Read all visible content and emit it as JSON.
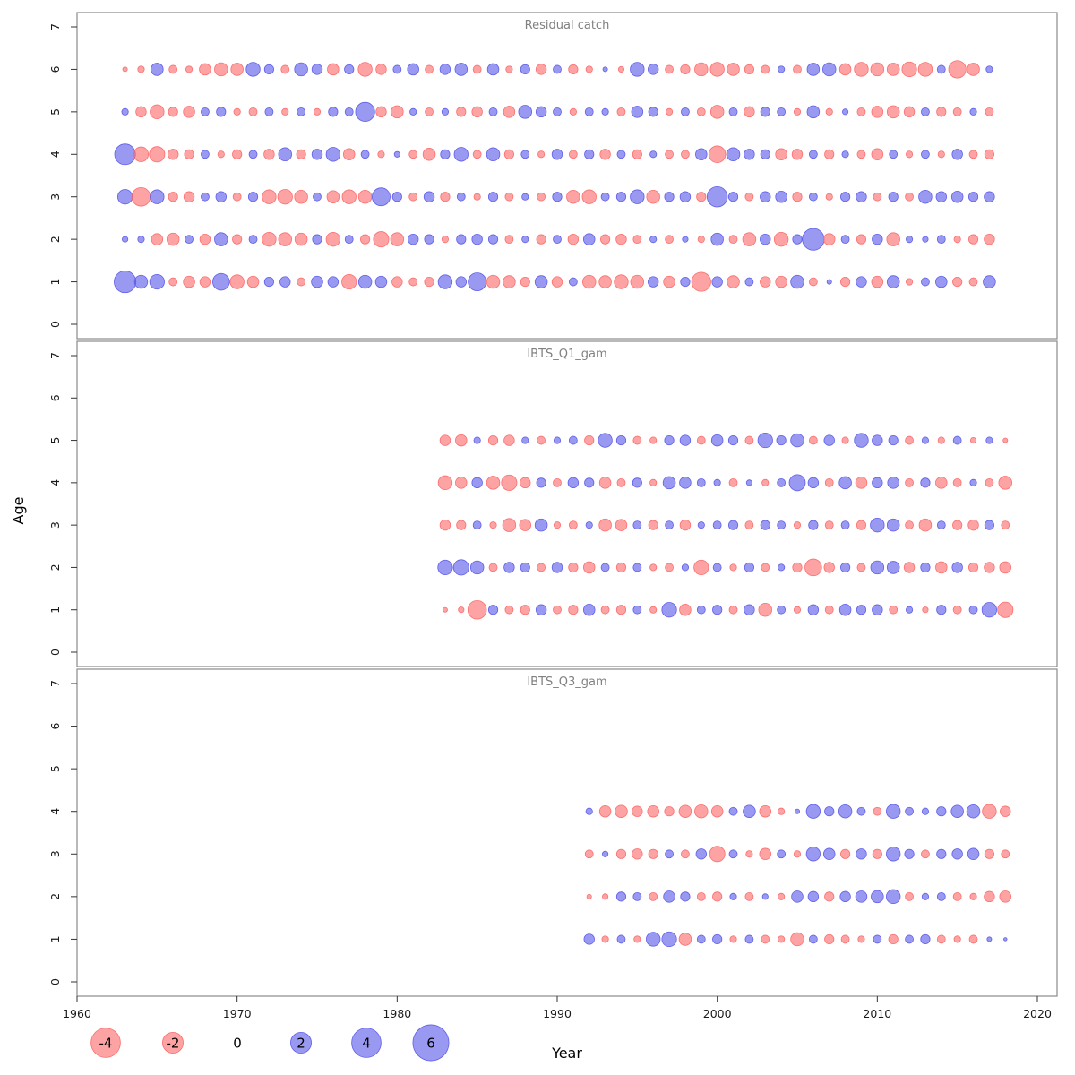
{
  "chart_data": {
    "type": "scatter",
    "subtype": "bubble-residuals",
    "xlabel": "Year",
    "ylabel": "Age",
    "xlim": [
      1958,
      2021
    ],
    "ylim": [
      0,
      7
    ],
    "x_ticks": [
      1960,
      1970,
      1980,
      1990,
      2000,
      2010,
      2020
    ],
    "y_ticks": [
      0,
      1,
      2,
      3,
      4,
      5,
      6,
      7
    ],
    "grid": false,
    "colors": {
      "positive": "#5b5be8",
      "negative": "#fb6a6a"
    },
    "legend": {
      "position": "bottom-left",
      "values": [
        -4,
        -2,
        0,
        2,
        4,
        6
      ]
    },
    "panels": [
      {
        "title": "Residual catch",
        "start_year": 1963,
        "series": [
          {
            "age": 1,
            "values": [
              2.2,
              0.8,
              1.0,
              -0.3,
              -0.6,
              -0.5,
              1.3,
              -0.9,
              -0.6,
              0.4,
              0.5,
              -0.3,
              0.6,
              0.5,
              -1.0,
              0.8,
              0.6,
              -0.5,
              -0.3,
              -0.4,
              0.9,
              0.5,
              1.5,
              -0.8,
              -0.7,
              -0.4,
              0.7,
              -0.5,
              0.3,
              -0.8,
              -0.7,
              -0.9,
              -0.8,
              0.5,
              -0.6,
              0.4,
              -1.7,
              0.5,
              -0.7,
              0.3,
              -0.5,
              -0.6,
              0.8,
              -0.3,
              0.1,
              -0.4,
              0.5,
              -0.6,
              0.7,
              -0.2,
              0.3,
              0.6,
              -0.4,
              -0.3,
              0.7
            ]
          },
          {
            "age": 2,
            "values": [
              0.15,
              0.2,
              -0.6,
              -0.7,
              0.3,
              -0.5,
              0.8,
              -0.4,
              0.3,
              -0.9,
              -0.8,
              -0.7,
              0.4,
              -0.9,
              0.3,
              -0.4,
              -1.1,
              -0.8,
              0.5,
              0.4,
              -0.2,
              0.4,
              0.5,
              0.4,
              -0.3,
              0.2,
              -0.4,
              0.3,
              -0.5,
              0.6,
              -0.4,
              -0.5,
              -0.3,
              0.2,
              -0.3,
              0.15,
              -0.2,
              0.7,
              -0.3,
              -0.8,
              0.5,
              -0.9,
              0.4,
              2.2,
              -0.6,
              0.3,
              -0.4,
              0.5,
              -0.8,
              0.2,
              0.15,
              0.3,
              -0.2,
              -0.4,
              -0.5
            ]
          },
          {
            "age": 3,
            "values": [
              1.0,
              -1.6,
              0.9,
              -0.4,
              -0.5,
              0.3,
              0.5,
              -0.3,
              0.4,
              -0.9,
              -1.0,
              -0.8,
              0.3,
              -0.7,
              -0.9,
              -0.8,
              1.5,
              0.4,
              -0.3,
              0.5,
              -0.4,
              0.3,
              -0.2,
              0.4,
              -0.3,
              0.2,
              -0.3,
              0.4,
              -0.8,
              -0.9,
              0.3,
              0.4,
              0.9,
              -0.8,
              0.4,
              0.5,
              -0.4,
              1.9,
              0.4,
              -0.3,
              0.5,
              0.6,
              -0.4,
              0.3,
              -0.2,
              0.4,
              0.5,
              -0.3,
              0.4,
              -0.3,
              0.8,
              0.5,
              0.6,
              0.4,
              0.5
            ]
          },
          {
            "age": 4,
            "values": [
              2.0,
              -1.0,
              -1.1,
              -0.5,
              -0.4,
              0.3,
              -0.2,
              -0.4,
              0.3,
              -0.5,
              0.8,
              -0.4,
              0.5,
              0.9,
              -0.6,
              0.3,
              -0.2,
              0.15,
              -0.3,
              -0.7,
              0.4,
              0.9,
              -0.3,
              0.8,
              -0.4,
              0.3,
              -0.2,
              0.5,
              -0.3,
              0.4,
              -0.5,
              0.3,
              -0.4,
              0.2,
              -0.3,
              -0.3,
              0.6,
              -1.3,
              0.8,
              0.5,
              0.4,
              -0.6,
              -0.5,
              0.3,
              -0.4,
              0.2,
              -0.3,
              -0.6,
              0.3,
              -0.2,
              0.3,
              -0.2,
              0.5,
              -0.3,
              -0.4
            ]
          },
          {
            "age": 5,
            "values": [
              0.2,
              -0.5,
              -0.9,
              -0.4,
              -0.6,
              0.3,
              0.4,
              -0.2,
              -0.3,
              0.3,
              -0.2,
              0.3,
              -0.2,
              0.4,
              0.3,
              1.7,
              -0.5,
              -0.7,
              0.2,
              -0.3,
              0.2,
              -0.4,
              -0.5,
              0.3,
              -0.6,
              0.8,
              0.5,
              0.3,
              -0.2,
              0.3,
              0.2,
              -0.3,
              0.6,
              0.4,
              -0.2,
              0.3,
              -0.3,
              -0.8,
              0.3,
              -0.5,
              0.4,
              0.3,
              -0.2,
              0.7,
              -0.2,
              0.15,
              -0.3,
              -0.6,
              -0.7,
              -0.5,
              0.3,
              -0.4,
              -0.3,
              0.2,
              -0.3
            ]
          },
          {
            "age": 6,
            "values": [
              -0.1,
              -0.2,
              0.7,
              -0.3,
              -0.2,
              -0.6,
              -0.8,
              -0.7,
              0.9,
              0.4,
              -0.3,
              0.8,
              0.5,
              -0.6,
              0.4,
              -0.9,
              -0.5,
              0.3,
              0.6,
              -0.3,
              0.5,
              0.7,
              -0.3,
              0.6,
              -0.2,
              0.4,
              -0.5,
              0.3,
              -0.4,
              -0.2,
              0.1,
              -0.15,
              0.9,
              0.5,
              -0.3,
              -0.4,
              -0.8,
              -0.9,
              -0.7,
              -0.4,
              -0.3,
              0.2,
              -0.3,
              0.7,
              0.8,
              -0.6,
              -0.9,
              -0.8,
              -0.7,
              -1.0,
              -0.9,
              0.3,
              -1.4,
              -0.7,
              0.2
            ]
          }
        ]
      },
      {
        "title": "IBTS_Q1_gam",
        "start_year": 1983,
        "series": [
          {
            "age": 1,
            "values": [
              -0.1,
              -0.15,
              -1.6,
              0.4,
              -0.3,
              -0.4,
              0.5,
              -0.3,
              -0.4,
              0.6,
              -0.3,
              -0.4,
              0.3,
              -0.2,
              1.0,
              -0.6,
              0.3,
              0.4,
              -0.3,
              0.5,
              -0.8,
              0.3,
              -0.2,
              0.5,
              -0.3,
              0.6,
              0.4,
              0.5,
              -0.3,
              0.2,
              -0.15,
              0.4,
              -0.3,
              0.3,
              1.0,
              -1.1
            ]
          },
          {
            "age": 2,
            "values": [
              1.0,
              1.1,
              0.8,
              -0.3,
              0.5,
              0.4,
              -0.3,
              0.5,
              -0.4,
              -0.6,
              0.3,
              -0.4,
              0.3,
              -0.2,
              -0.3,
              0.2,
              -1.0,
              0.3,
              -0.2,
              0.4,
              -0.3,
              0.2,
              -0.4,
              -1.3,
              -0.5,
              0.4,
              -0.3,
              0.8,
              0.7,
              -0.5,
              0.4,
              -0.6,
              0.5,
              -0.4,
              -0.5,
              -0.6
            ]
          },
          {
            "age": 3,
            "values": [
              -0.5,
              -0.4,
              0.3,
              -0.2,
              -0.8,
              -0.6,
              0.7,
              -0.2,
              -0.3,
              0.2,
              -0.7,
              -0.6,
              0.3,
              -0.4,
              0.3,
              -0.5,
              0.2,
              0.3,
              0.4,
              -0.3,
              0.4,
              0.3,
              -0.2,
              0.4,
              -0.3,
              0.3,
              -0.4,
              0.9,
              0.7,
              -0.3,
              -0.7,
              0.3,
              -0.4,
              -0.5,
              0.4,
              -0.3
            ]
          },
          {
            "age": 4,
            "values": [
              -0.9,
              -0.6,
              0.5,
              -0.8,
              -1.1,
              -0.5,
              0.4,
              -0.3,
              0.5,
              0.4,
              -0.6,
              -0.3,
              0.4,
              -0.2,
              0.7,
              0.6,
              0.3,
              0.2,
              -0.3,
              0.15,
              -0.2,
              0.3,
              1.2,
              0.5,
              -0.3,
              0.7,
              -0.6,
              0.5,
              0.6,
              -0.3,
              0.4,
              -0.6,
              -0.3,
              0.2,
              -0.3,
              -0.8
            ]
          },
          {
            "age": 5,
            "values": [
              -0.5,
              -0.6,
              0.2,
              -0.4,
              -0.5,
              0.2,
              -0.3,
              0.2,
              0.3,
              -0.4,
              0.9,
              0.4,
              -0.3,
              -0.2,
              0.4,
              0.5,
              -0.3,
              0.6,
              0.4,
              -0.3,
              1.0,
              0.4,
              0.8,
              -0.3,
              0.5,
              -0.2,
              0.9,
              0.5,
              0.4,
              -0.3,
              0.2,
              -0.2,
              0.3,
              -0.15,
              0.2,
              -0.1
            ]
          }
        ]
      },
      {
        "title": "IBTS_Q3_gam",
        "start_year": 1992,
        "series": [
          {
            "age": 1,
            "values": [
              0.5,
              -0.2,
              0.3,
              -0.2,
              0.9,
              1.0,
              -0.7,
              0.3,
              0.4,
              -0.2,
              0.3,
              -0.3,
              -0.2,
              -0.8,
              0.3,
              -0.4,
              -0.3,
              -0.2,
              0.3,
              -0.4,
              0.3,
              0.4,
              -0.3,
              -0.2,
              -0.3,
              0.1,
              0.05
            ]
          },
          {
            "age": 2,
            "values": [
              -0.1,
              -0.15,
              0.4,
              0.3,
              -0.3,
              0.6,
              0.4,
              -0.3,
              -0.4,
              0.2,
              -0.3,
              0.15,
              -0.2,
              0.6,
              0.5,
              -0.4,
              0.5,
              0.6,
              0.7,
              0.9,
              -0.3,
              0.2,
              0.3,
              -0.3,
              -0.2,
              -0.5,
              -0.6
            ]
          },
          {
            "age": 3,
            "values": [
              -0.3,
              0.15,
              -0.4,
              -0.5,
              -0.4,
              0.3,
              -0.3,
              0.5,
              -1.1,
              0.3,
              -0.2,
              -0.6,
              0.3,
              -0.2,
              0.9,
              0.6,
              -0.4,
              0.5,
              -0.4,
              0.9,
              0.4,
              -0.3,
              0.4,
              0.5,
              0.6,
              -0.4,
              -0.3
            ]
          },
          {
            "age": 4,
            "values": [
              0.2,
              -0.6,
              -0.7,
              -0.5,
              -0.6,
              -0.4,
              -0.7,
              -0.8,
              -0.6,
              0.3,
              0.7,
              -0.6,
              -0.2,
              0.1,
              0.9,
              0.4,
              0.8,
              0.3,
              -0.3,
              0.9,
              0.3,
              0.2,
              0.4,
              0.7,
              0.8,
              -0.9,
              -0.5
            ]
          }
        ]
      }
    ]
  }
}
